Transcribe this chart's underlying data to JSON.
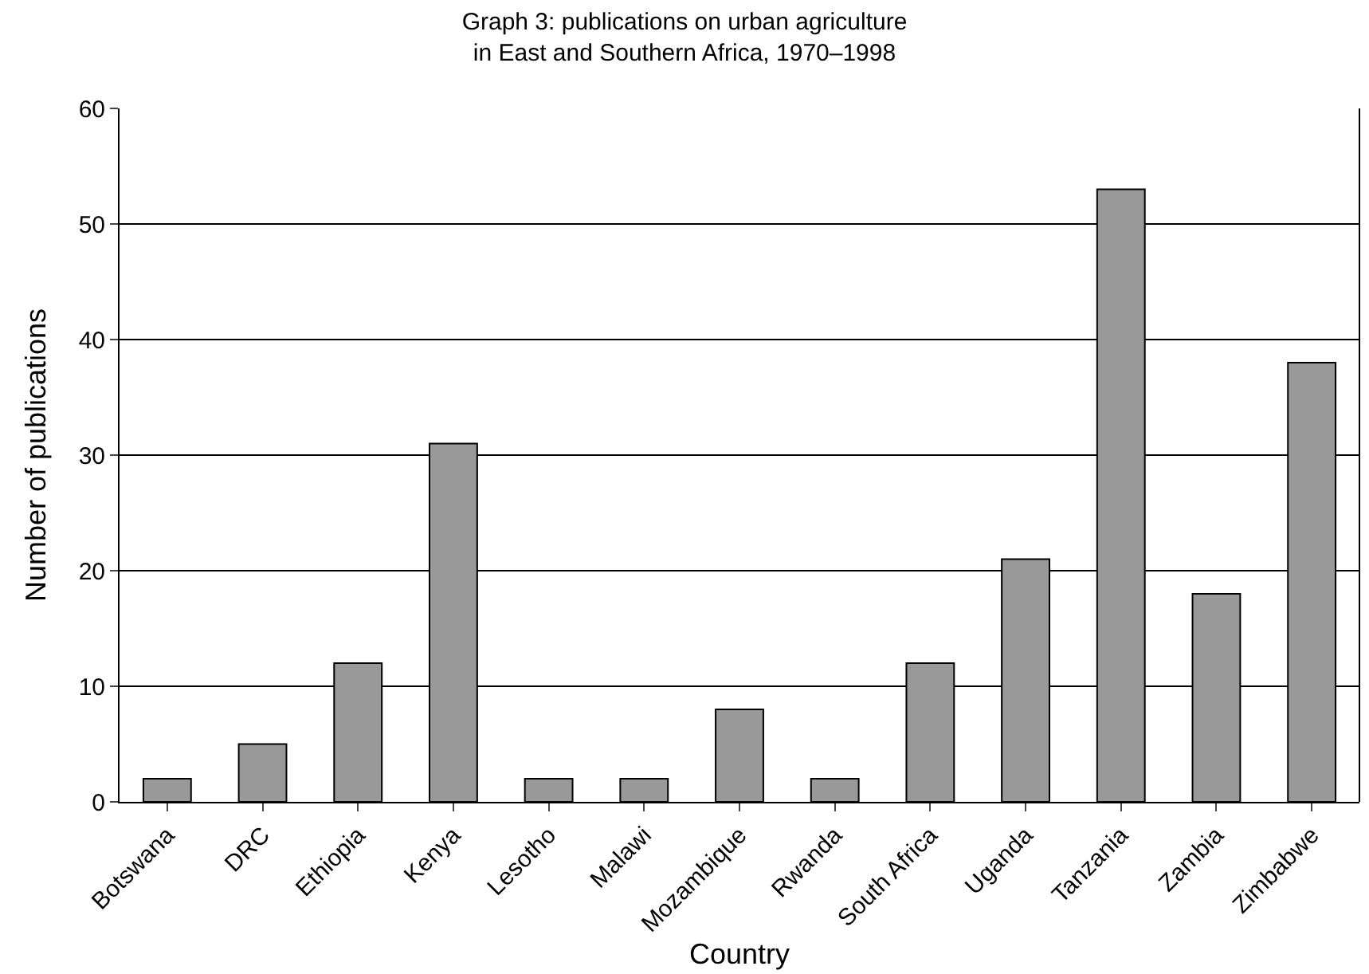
{
  "chart_data": {
    "type": "bar",
    "title": "Graph 3: publications on urban agriculture\nin East and Southern Africa, 1970–1998",
    "xlabel": "Country",
    "ylabel": "Number of publications",
    "categories": [
      "Botswana",
      "DRC",
      "Ethiopia",
      "Kenya",
      "Lesotho",
      "Malawi",
      "Mozambique",
      "Rwanda",
      "South Africa",
      "Uganda",
      "Tanzania",
      "Zambia",
      "Zimbabwe"
    ],
    "values": [
      2,
      5,
      12,
      31,
      2,
      2,
      8,
      2,
      12,
      21,
      53,
      18,
      38
    ],
    "color": "#999999",
    "ylim": [
      0,
      60
    ],
    "yticks": [
      0,
      10,
      20,
      30,
      40,
      50,
      60
    ],
    "grid": "y",
    "legend": false
  }
}
